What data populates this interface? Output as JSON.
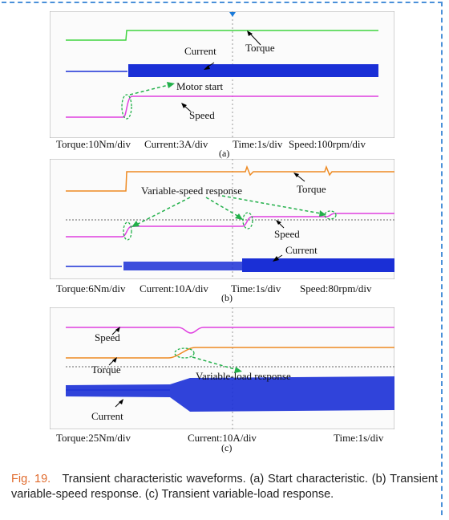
{
  "panels": [
    {
      "labels": {
        "current": "Current",
        "torque": "Torque",
        "annotation": "Motor start",
        "speed": "Speed"
      },
      "scale": {
        "torque": "Torque:10Nm/div",
        "current": "Current:3A/div",
        "time": "Time:1s/div",
        "speed": "Speed:100rpm/div"
      },
      "sublabel": "(a)"
    },
    {
      "labels": {
        "annotation": "Variable-speed response",
        "torque": "Torque",
        "speed": "Speed",
        "current": "Current"
      },
      "scale": {
        "torque": "Torque:6Nm/div",
        "current": "Current:10A/div",
        "time": "Time:1s/div",
        "speed": "Speed:80rpm/div"
      },
      "sublabel": "(b)"
    },
    {
      "labels": {
        "speed": "Speed",
        "torque": "Torque",
        "annotation": "Variable-load response",
        "current": "Current"
      },
      "scale": {
        "torque": "Torque:25Nm/div",
        "current": "Current:10A/div",
        "time": "Time:1s/div"
      },
      "sublabel": "(c)"
    }
  ],
  "caption": {
    "figure": "Fig. 19.",
    "text": "Transient characteristic waveforms. (a) Start characteristic. (b) Transient variable-speed response. (c) Transient variable-load response."
  },
  "colors": {
    "torque_a": "#3fd43f",
    "current": "#1a2fd6",
    "speed": "#e040e0",
    "torque": "#ee8a22",
    "arrow": "#22b04a",
    "border": "#4a90d9"
  }
}
